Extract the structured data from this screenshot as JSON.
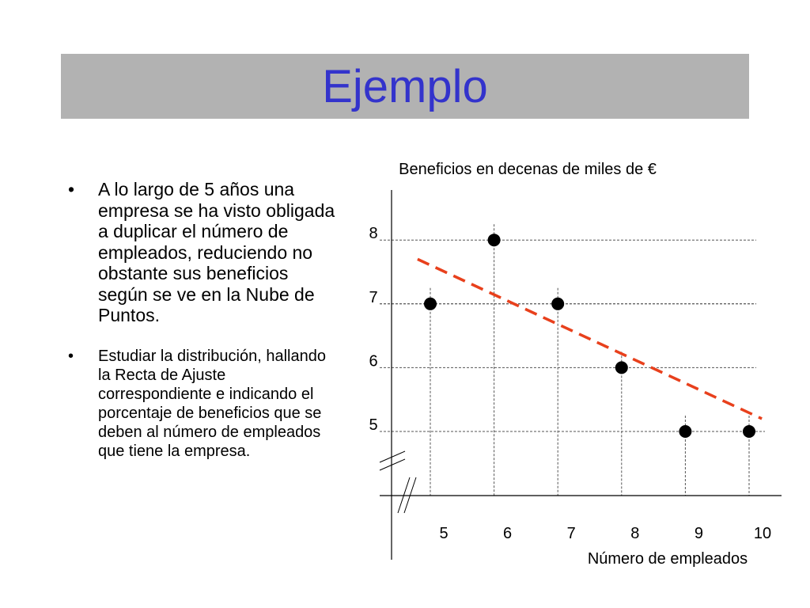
{
  "slide": {
    "title": "Ejemplo",
    "title_color": "#3333cc",
    "title_bg": "#b2b2b2",
    "bullet_glyph": "•",
    "bullets": [
      "A lo largo de 5 años una empresa se ha visto obligada a duplicar el número de empleados, reduciendo no obstante sus beneficios según se ve en la Nube de Puntos.",
      "Estudiar la distribución, hallando la Recta de Ajuste correspondiente e indicando el porcentaje de beneficios que se deben al número de empleados que tiene la empresa."
    ]
  },
  "chart_data": {
    "type": "scatter",
    "title": "",
    "ylabel": "Beneficios en decenas de miles de €",
    "xlabel": "Número de empleados",
    "x_ticks": [
      5,
      6,
      7,
      8,
      9,
      10
    ],
    "y_ticks": [
      5,
      6,
      7,
      8
    ],
    "x_break": true,
    "y_break": true,
    "grid": "dashed guide lines at points",
    "series": [
      {
        "points": [
          {
            "x": 5,
            "y": 7
          },
          {
            "x": 6,
            "y": 8
          },
          {
            "x": 7,
            "y": 7
          },
          {
            "x": 8,
            "y": 6
          },
          {
            "x": 9,
            "y": 5
          },
          {
            "x": 10,
            "y": 5
          }
        ],
        "color": "#000000"
      }
    ],
    "trend_line": {
      "style": "dashed",
      "color": "#e8401c",
      "from": {
        "x": 4.8,
        "y": 7.7
      },
      "to": {
        "x": 10.2,
        "y": 5.2
      }
    }
  }
}
